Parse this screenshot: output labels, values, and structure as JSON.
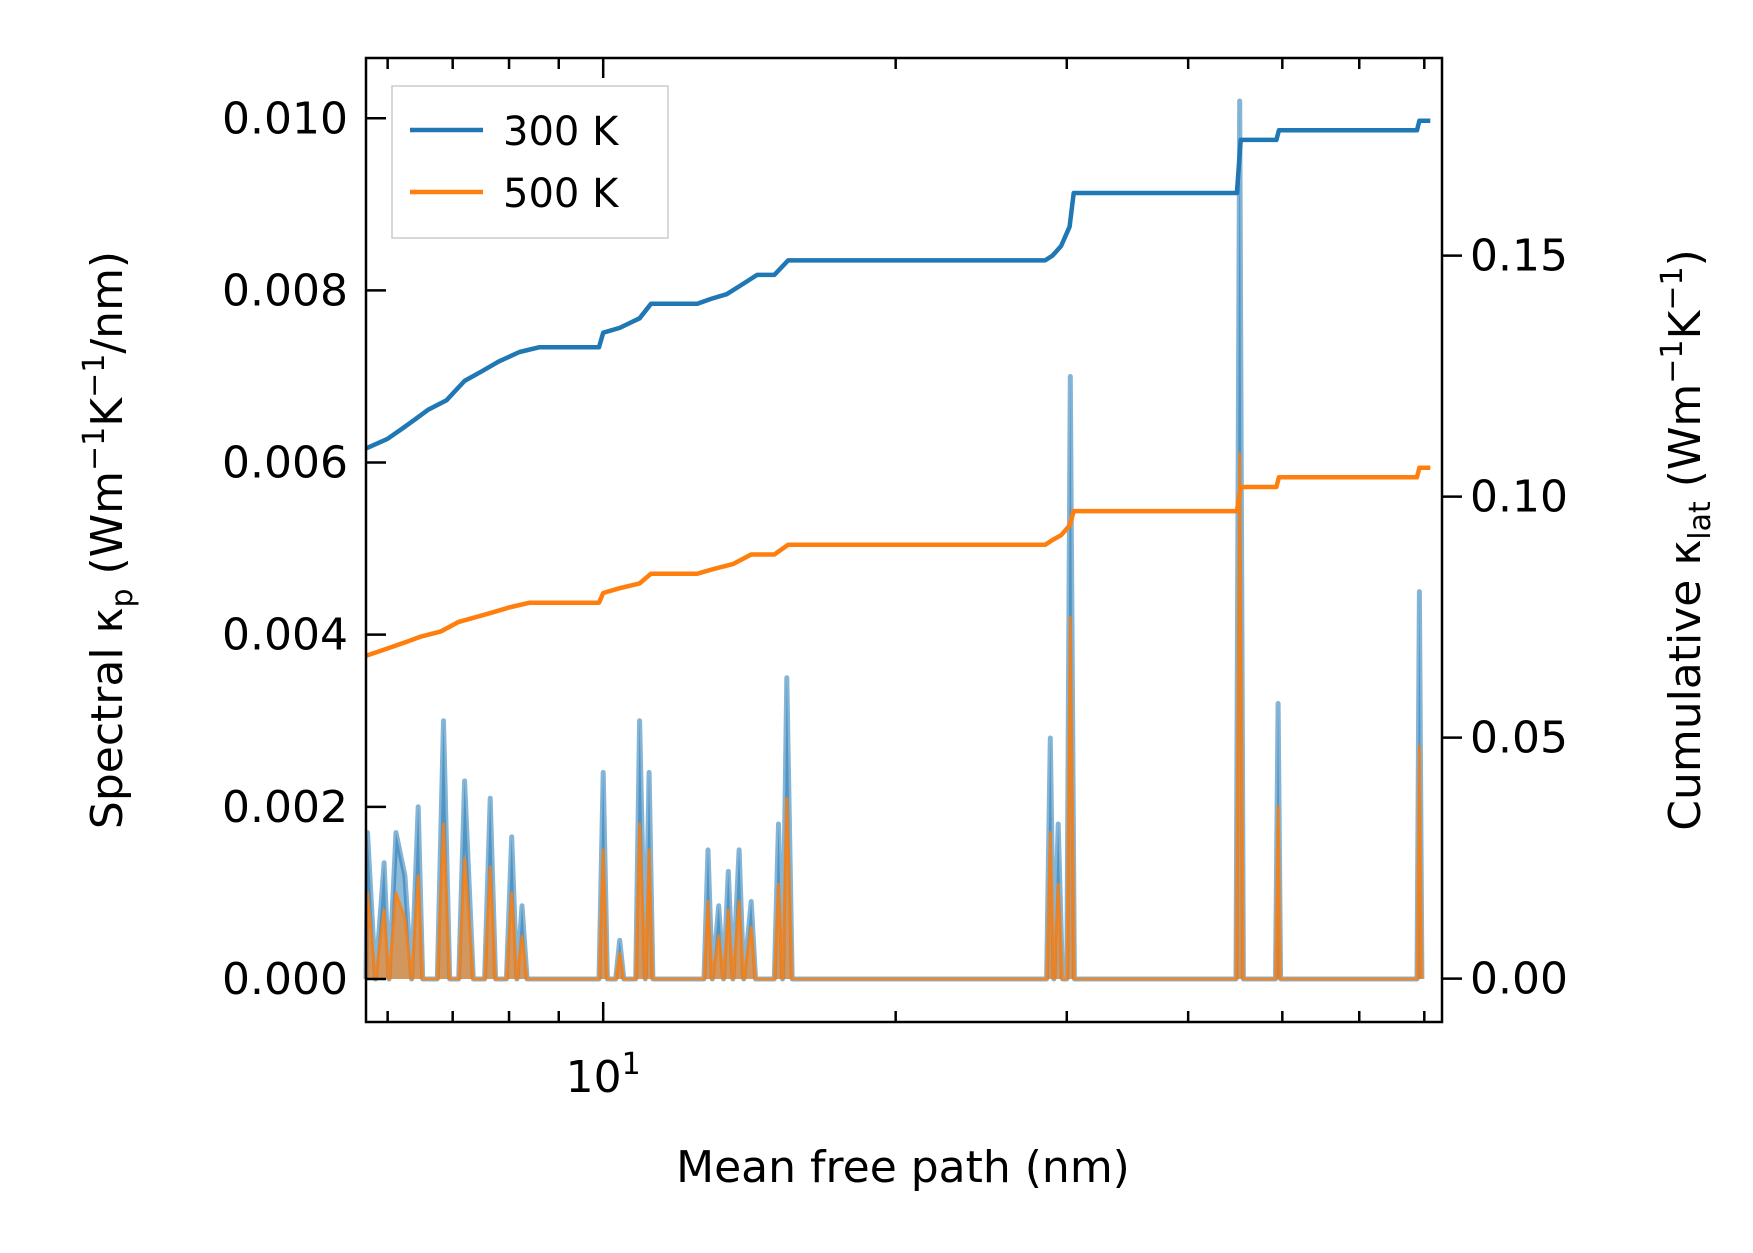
{
  "chart_data": {
    "type": "line",
    "xscale": "log",
    "xlim": [
      5.7,
      73
    ],
    "xlabel": "Mean free path (nm)",
    "x_tick_labels": [
      {
        "value": 10,
        "base": "10",
        "exp": "1"
      }
    ],
    "y_left": {
      "label_parts": {
        "pre": "Spectral κ",
        "sub": "p",
        "mid1": " (Wm",
        "sup1": "−1",
        "mid2": "K",
        "sup2": "−1",
        "post": "/nm)"
      },
      "ylim": [
        -0.0005,
        0.0107
      ],
      "ticks": [
        0.0,
        0.002,
        0.004,
        0.006,
        0.008,
        0.01
      ],
      "tick_labels": [
        "0.000",
        "0.002",
        "0.004",
        "0.006",
        "0.008",
        "0.010"
      ]
    },
    "y_right": {
      "label_parts": {
        "pre": "Cumulative κ",
        "sub": "lat",
        "mid1": " (Wm",
        "sup1": "−1",
        "mid2": "K",
        "sup2": "−1",
        "post": ")"
      },
      "ylim": [
        -0.009,
        0.191
      ],
      "ticks": [
        0.0,
        0.05,
        0.1,
        0.15
      ],
      "tick_labels": [
        "0.00",
        "0.05",
        "0.10",
        "0.15"
      ]
    },
    "series": [
      {
        "name": "300 K",
        "color": "#1f77b4",
        "spectral": [
          [
            5.7,
            0
          ],
          [
            5.72,
            0.0017
          ],
          [
            5.83,
            0
          ],
          [
            5.95,
            0.00135
          ],
          [
            6.02,
            0
          ],
          [
            6.12,
            0.0017
          ],
          [
            6.25,
            0.0012
          ],
          [
            6.35,
            0
          ],
          [
            6.45,
            0.002
          ],
          [
            6.52,
            0
          ],
          [
            6.75,
            0
          ],
          [
            6.85,
            0.003
          ],
          [
            6.95,
            0
          ],
          [
            7.1,
            0
          ],
          [
            7.2,
            0.0023
          ],
          [
            7.35,
            0
          ],
          [
            7.55,
            0
          ],
          [
            7.65,
            0.0021
          ],
          [
            7.75,
            0
          ],
          [
            7.95,
            0
          ],
          [
            8.05,
            0.00165
          ],
          [
            8.15,
            0
          ],
          [
            8.25,
            0.00085
          ],
          [
            8.35,
            0
          ],
          [
            9.9,
            0
          ],
          [
            10.0,
            0.0024
          ],
          [
            10.1,
            0
          ],
          [
            10.3,
            0
          ],
          [
            10.4,
            0.00045
          ],
          [
            10.5,
            0
          ],
          [
            10.8,
            0
          ],
          [
            10.9,
            0.003
          ],
          [
            11.05,
            0
          ],
          [
            11.15,
            0.0024
          ],
          [
            11.25,
            0
          ],
          [
            12.7,
            0
          ],
          [
            12.82,
            0.0015
          ],
          [
            12.95,
            0
          ],
          [
            13.15,
            0.00085
          ],
          [
            13.3,
            0
          ],
          [
            13.45,
            0.00125
          ],
          [
            13.6,
            0
          ],
          [
            13.8,
            0.0015
          ],
          [
            13.95,
            0
          ],
          [
            14.2,
            0.0009
          ],
          [
            14.35,
            0
          ],
          [
            15.0,
            0
          ],
          [
            15.15,
            0.0018
          ],
          [
            15.3,
            0
          ],
          [
            15.45,
            0.0035
          ],
          [
            15.65,
            0
          ],
          [
            28.6,
            0
          ],
          [
            28.85,
            0.0028
          ],
          [
            29.1,
            0
          ],
          [
            29.4,
            0.0018
          ],
          [
            29.7,
            0
          ],
          [
            30.0,
            0
          ],
          [
            30.25,
            0.007
          ],
          [
            30.55,
            0
          ],
          [
            44.8,
            0
          ],
          [
            45.2,
            0.0102
          ],
          [
            45.6,
            0
          ],
          [
            49.2,
            0
          ],
          [
            49.5,
            0.0032
          ],
          [
            49.8,
            0
          ],
          [
            68.8,
            0
          ],
          [
            69.2,
            0.0045
          ],
          [
            69.6,
            0
          ]
        ],
        "cumulative": [
          [
            5.7,
            0.11
          ],
          [
            5.85,
            0.111
          ],
          [
            6.0,
            0.112
          ],
          [
            6.2,
            0.114
          ],
          [
            6.4,
            0.116
          ],
          [
            6.6,
            0.118
          ],
          [
            6.9,
            0.12
          ],
          [
            7.2,
            0.124
          ],
          [
            7.5,
            0.126
          ],
          [
            7.8,
            0.128
          ],
          [
            8.2,
            0.13
          ],
          [
            8.6,
            0.131
          ],
          [
            9.9,
            0.131
          ],
          [
            10.0,
            0.134
          ],
          [
            10.4,
            0.135
          ],
          [
            10.9,
            0.137
          ],
          [
            11.2,
            0.14
          ],
          [
            12.5,
            0.14
          ],
          [
            12.9,
            0.141
          ],
          [
            13.4,
            0.142
          ],
          [
            13.9,
            0.144
          ],
          [
            14.4,
            0.146
          ],
          [
            15.0,
            0.146
          ],
          [
            15.5,
            0.149
          ],
          [
            28.5,
            0.149
          ],
          [
            29.0,
            0.15
          ],
          [
            29.6,
            0.152
          ],
          [
            30.2,
            0.156
          ],
          [
            30.5,
            0.163
          ],
          [
            44.9,
            0.163
          ],
          [
            45.3,
            0.174
          ],
          [
            49.3,
            0.174
          ],
          [
            49.6,
            0.176
          ],
          [
            68.8,
            0.176
          ],
          [
            69.2,
            0.178
          ],
          [
            71.0,
            0.178
          ]
        ]
      },
      {
        "name": "500 K",
        "color": "#ff7f0e",
        "spectral": [
          [
            5.7,
            0
          ],
          [
            5.72,
            0.001
          ],
          [
            5.83,
            0
          ],
          [
            5.95,
            0.0008
          ],
          [
            6.02,
            0
          ],
          [
            6.12,
            0.001
          ],
          [
            6.25,
            0.0007
          ],
          [
            6.35,
            0
          ],
          [
            6.45,
            0.0012
          ],
          [
            6.52,
            0
          ],
          [
            6.75,
            0
          ],
          [
            6.85,
            0.0018
          ],
          [
            6.95,
            0
          ],
          [
            7.1,
            0
          ],
          [
            7.2,
            0.0014
          ],
          [
            7.35,
            0
          ],
          [
            7.55,
            0
          ],
          [
            7.65,
            0.0013
          ],
          [
            7.75,
            0
          ],
          [
            7.95,
            0
          ],
          [
            8.05,
            0.001
          ],
          [
            8.15,
            0
          ],
          [
            8.25,
            0.0005
          ],
          [
            8.35,
            0
          ],
          [
            9.9,
            0
          ],
          [
            10.0,
            0.0015
          ],
          [
            10.1,
            0
          ],
          [
            10.3,
            0
          ],
          [
            10.4,
            0.0003
          ],
          [
            10.5,
            0
          ],
          [
            10.8,
            0
          ],
          [
            10.9,
            0.0018
          ],
          [
            11.05,
            0
          ],
          [
            11.15,
            0.0015
          ],
          [
            11.25,
            0
          ],
          [
            12.7,
            0
          ],
          [
            12.82,
            0.0009
          ],
          [
            12.95,
            0
          ],
          [
            13.15,
            0.0005
          ],
          [
            13.3,
            0
          ],
          [
            13.45,
            0.0008
          ],
          [
            13.6,
            0
          ],
          [
            13.8,
            0.0009
          ],
          [
            13.95,
            0
          ],
          [
            14.2,
            0.0006
          ],
          [
            14.35,
            0
          ],
          [
            15.0,
            0
          ],
          [
            15.15,
            0.0011
          ],
          [
            15.3,
            0
          ],
          [
            15.45,
            0.0021
          ],
          [
            15.65,
            0
          ],
          [
            28.6,
            0
          ],
          [
            28.85,
            0.0017
          ],
          [
            29.1,
            0
          ],
          [
            29.4,
            0.0011
          ],
          [
            29.7,
            0
          ],
          [
            30.0,
            0
          ],
          [
            30.25,
            0.0042
          ],
          [
            30.55,
            0
          ],
          [
            44.8,
            0
          ],
          [
            45.2,
            0.0061
          ],
          [
            45.6,
            0
          ],
          [
            49.2,
            0
          ],
          [
            49.5,
            0.002
          ],
          [
            49.8,
            0
          ],
          [
            68.8,
            0
          ],
          [
            69.2,
            0.0027
          ],
          [
            69.6,
            0
          ]
        ],
        "cumulative": [
          [
            5.7,
            0.067
          ],
          [
            5.9,
            0.068
          ],
          [
            6.1,
            0.069
          ],
          [
            6.3,
            0.07
          ],
          [
            6.5,
            0.071
          ],
          [
            6.8,
            0.072
          ],
          [
            7.1,
            0.074
          ],
          [
            7.4,
            0.075
          ],
          [
            7.7,
            0.076
          ],
          [
            8.0,
            0.077
          ],
          [
            8.4,
            0.078
          ],
          [
            9.9,
            0.078
          ],
          [
            10.0,
            0.08
          ],
          [
            10.4,
            0.081
          ],
          [
            10.9,
            0.082
          ],
          [
            11.2,
            0.084
          ],
          [
            12.5,
            0.084
          ],
          [
            13.0,
            0.085
          ],
          [
            13.6,
            0.086
          ],
          [
            14.2,
            0.088
          ],
          [
            15.0,
            0.088
          ],
          [
            15.5,
            0.09
          ],
          [
            28.5,
            0.09
          ],
          [
            29.0,
            0.091
          ],
          [
            29.6,
            0.092
          ],
          [
            30.2,
            0.094
          ],
          [
            30.5,
            0.097
          ],
          [
            44.9,
            0.097
          ],
          [
            45.3,
            0.102
          ],
          [
            49.3,
            0.102
          ],
          [
            49.6,
            0.104
          ],
          [
            68.8,
            0.104
          ],
          [
            69.2,
            0.106
          ],
          [
            71.0,
            0.106
          ]
        ]
      }
    ],
    "legend": {
      "position": "upper-left",
      "entries": [
        "300 K",
        "500 K"
      ]
    }
  }
}
